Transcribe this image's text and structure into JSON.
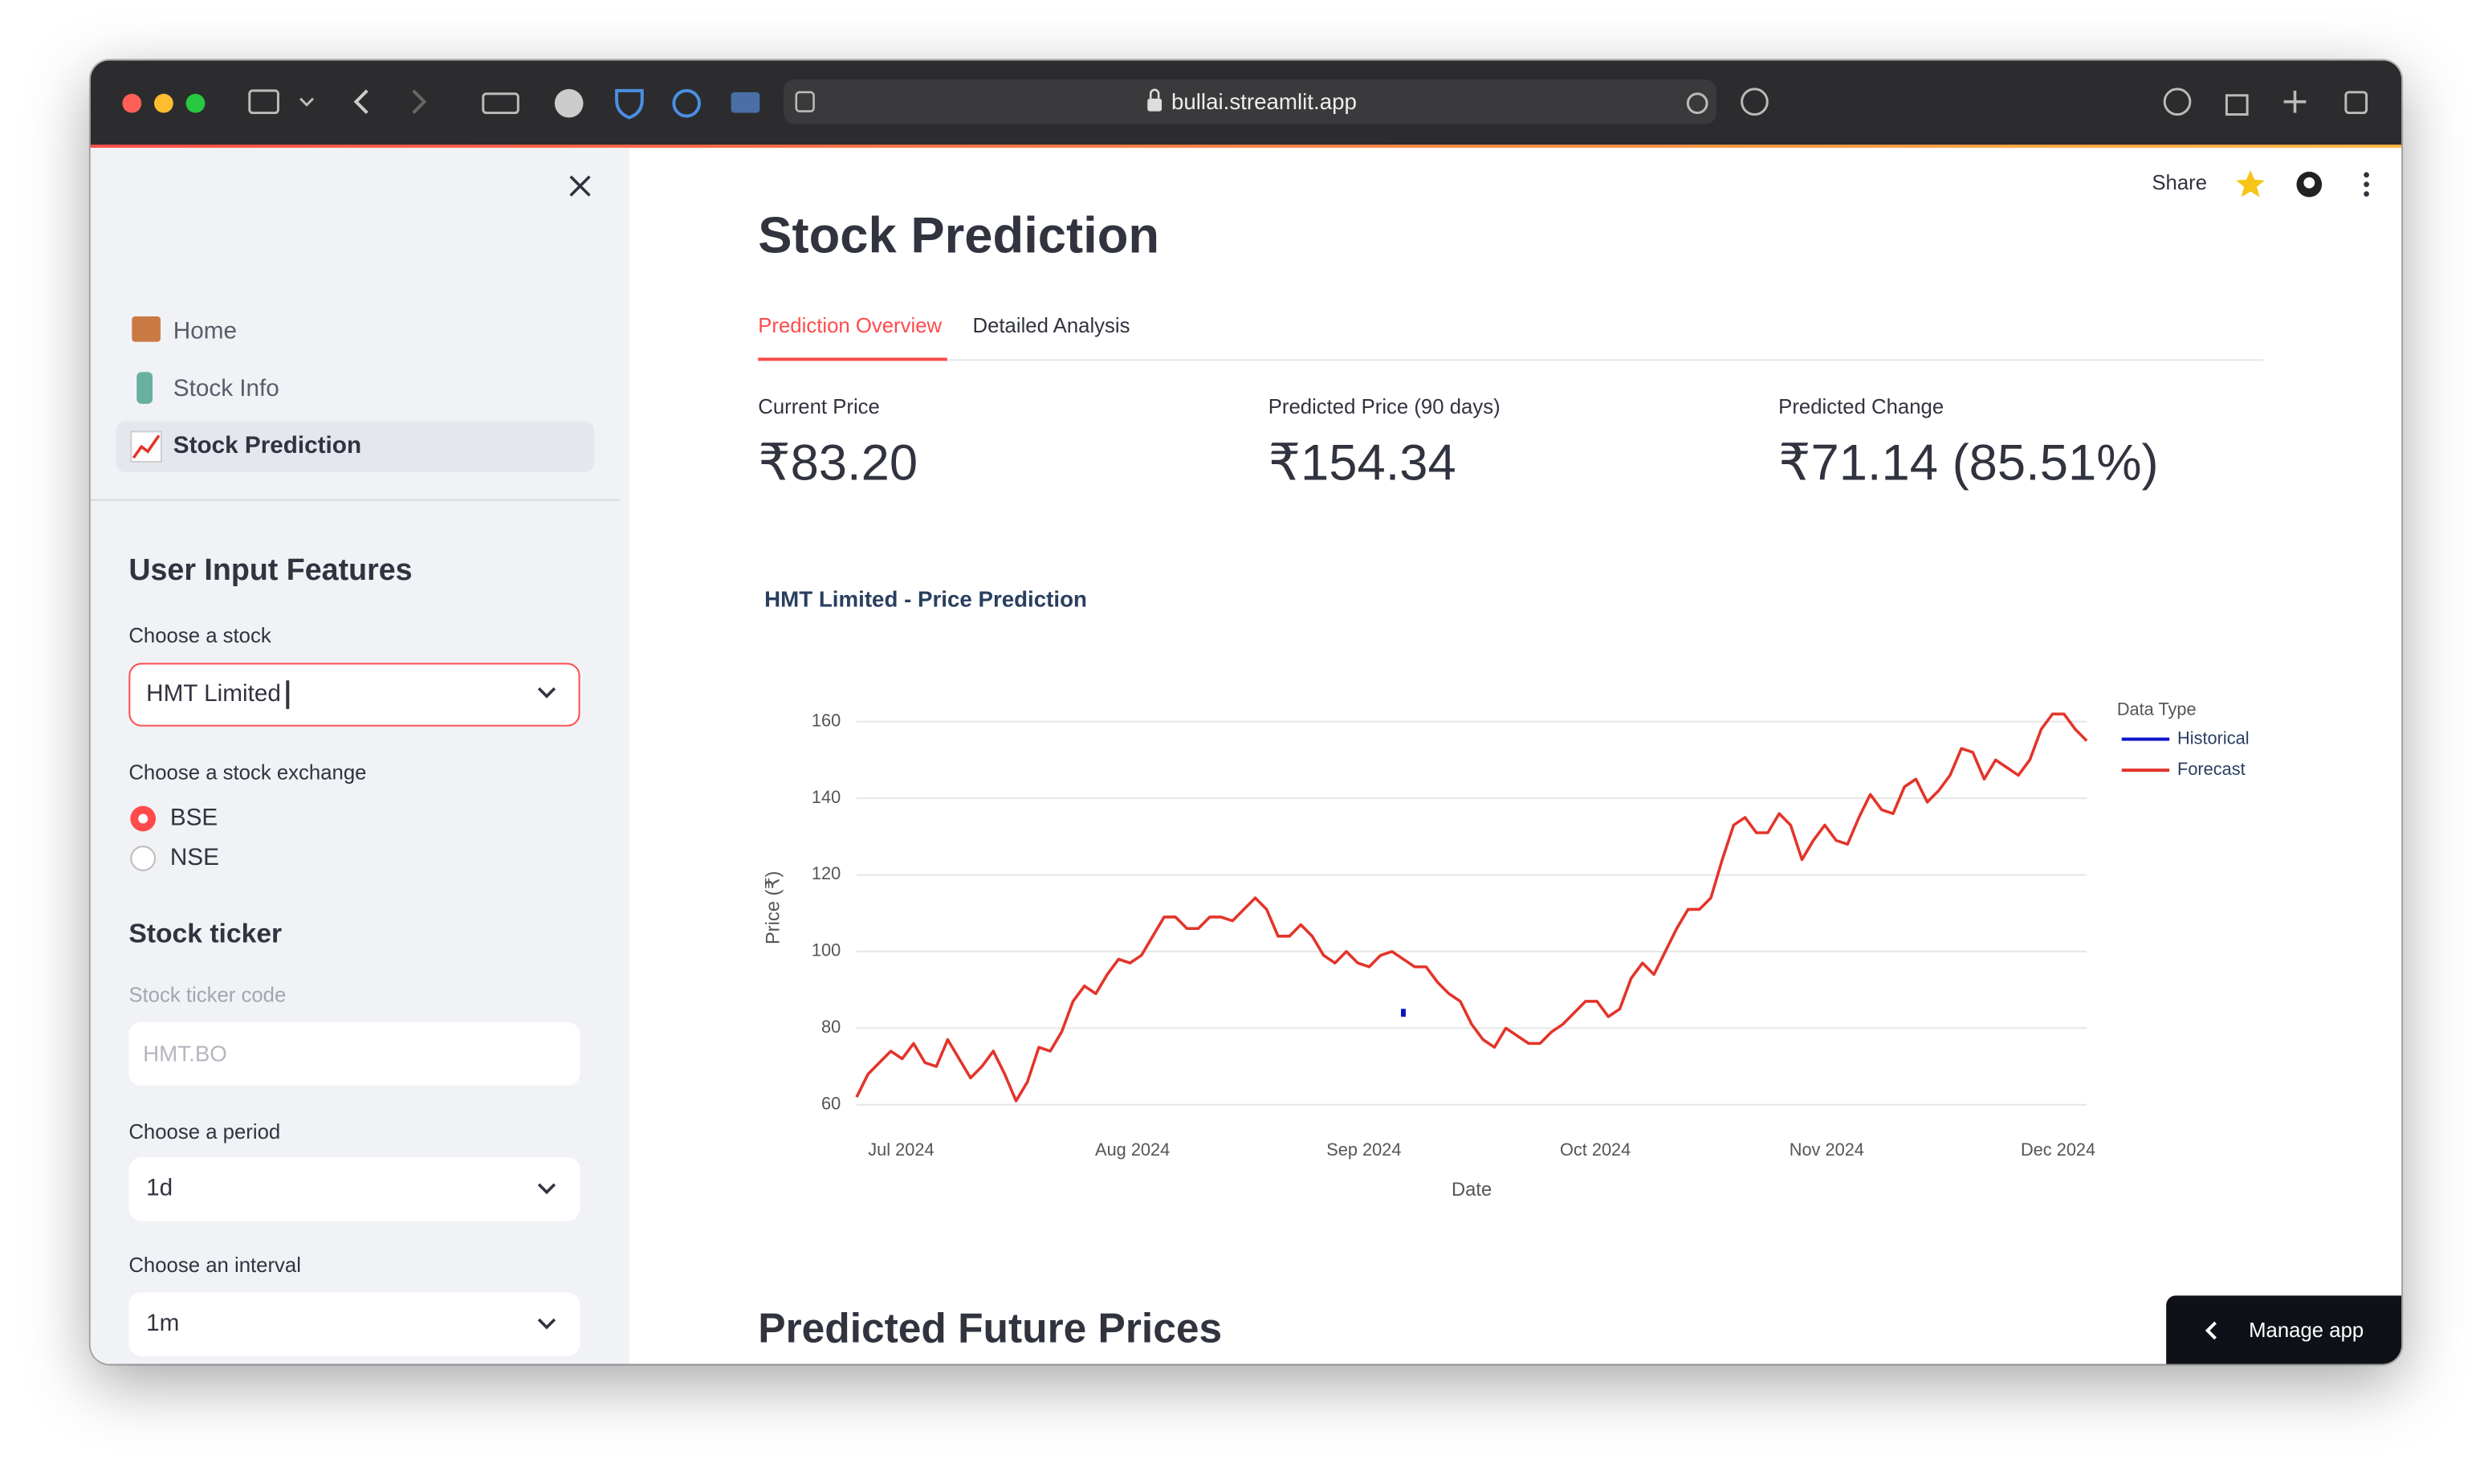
{
  "browser": {
    "url": "bullai.streamlit.app"
  },
  "sidebar": {
    "nav": [
      "Home",
      "Stock Info",
      "Stock Prediction"
    ],
    "section_title": "User Input Features",
    "stock_label": "Choose a stock",
    "stock_value": "HMT Limited",
    "exchange_label": "Choose a stock exchange",
    "exchange_options": [
      "BSE",
      "NSE"
    ],
    "ticker_title": "Stock ticker",
    "ticker_label": "Stock ticker code",
    "ticker_placeholder": "HMT.BO",
    "period_label": "Choose a period",
    "period_value": "1d",
    "interval_label": "Choose an interval",
    "interval_value": "1m"
  },
  "header": {
    "share": "Share"
  },
  "main": {
    "title": "Stock Prediction",
    "tabs": [
      "Prediction Overview",
      "Detailed Analysis"
    ],
    "metrics": [
      {
        "label": "Current Price",
        "value": "₹83.20"
      },
      {
        "label": "Predicted Price (90 days)",
        "value": "₹154.34"
      },
      {
        "label": "Predicted Change",
        "value": "₹71.14 (85.51%)"
      }
    ],
    "section_title": "Predicted Future Prices",
    "manage_app": "Manage app"
  },
  "chart_data": {
    "type": "line",
    "title": "HMT Limited - Price Prediction",
    "xlabel": "Date",
    "ylabel": "Price (₹)",
    "legend_title": "Data Type",
    "xticks": [
      "Jul 2024",
      "Aug 2024",
      "Sep 2024",
      "Oct 2024",
      "Nov 2024",
      "Dec 2024"
    ],
    "ylim": [
      56,
      166
    ],
    "yticks": [
      60,
      80,
      100,
      120,
      140,
      160
    ],
    "grid": true,
    "series": [
      {
        "name": "Historical",
        "color": "#0a14c8",
        "values": [
          null,
          null,
          null,
          null,
          null,
          null,
          null,
          null,
          null,
          null,
          null,
          null,
          null,
          null,
          null,
          null,
          null,
          null,
          null,
          null,
          null,
          null,
          null,
          null,
          null,
          null,
          null,
          null,
          null,
          null,
          null,
          null,
          null,
          null,
          null,
          null,
          null,
          null,
          null,
          null,
          null,
          null,
          null,
          null,
          null,
          null,
          null,
          null,
          84,
          null,
          null,
          null,
          null,
          null,
          null,
          null,
          null,
          null,
          null,
          null,
          null,
          null,
          null,
          null,
          null,
          null,
          null,
          null,
          null,
          null,
          null,
          null,
          null,
          null,
          null,
          null,
          null,
          null,
          null,
          null,
          null,
          null,
          null,
          null,
          null,
          null,
          null,
          null,
          null,
          null,
          null,
          null,
          null,
          null,
          null,
          null,
          null,
          null,
          null,
          null,
          null,
          null,
          null,
          null,
          null,
          null,
          null,
          null,
          null
        ]
      },
      {
        "name": "Forecast",
        "color": "#e3342a",
        "values": [
          62,
          68,
          71,
          74,
          72,
          76,
          71,
          70,
          77,
          72,
          67,
          70,
          74,
          68,
          61,
          66,
          75,
          74,
          79,
          87,
          91,
          89,
          94,
          98,
          97,
          99,
          104,
          109,
          109,
          106,
          106,
          109,
          109,
          108,
          111,
          114,
          111,
          104,
          104,
          107,
          104,
          99,
          97,
          100,
          97,
          96,
          99,
          100,
          98,
          96,
          96,
          92,
          89,
          87,
          81,
          77,
          75,
          80,
          78,
          76,
          76,
          79,
          81,
          84,
          87,
          87,
          83,
          85,
          93,
          97,
          94,
          100,
          106,
          111,
          111,
          114,
          124,
          133,
          135,
          131,
          131,
          136,
          133,
          124,
          129,
          133,
          129,
          128,
          135,
          141,
          137,
          136,
          143,
          145,
          139,
          142,
          146,
          153,
          152,
          145,
          150,
          148,
          146,
          150,
          158,
          162,
          162,
          158,
          155
        ]
      }
    ]
  }
}
